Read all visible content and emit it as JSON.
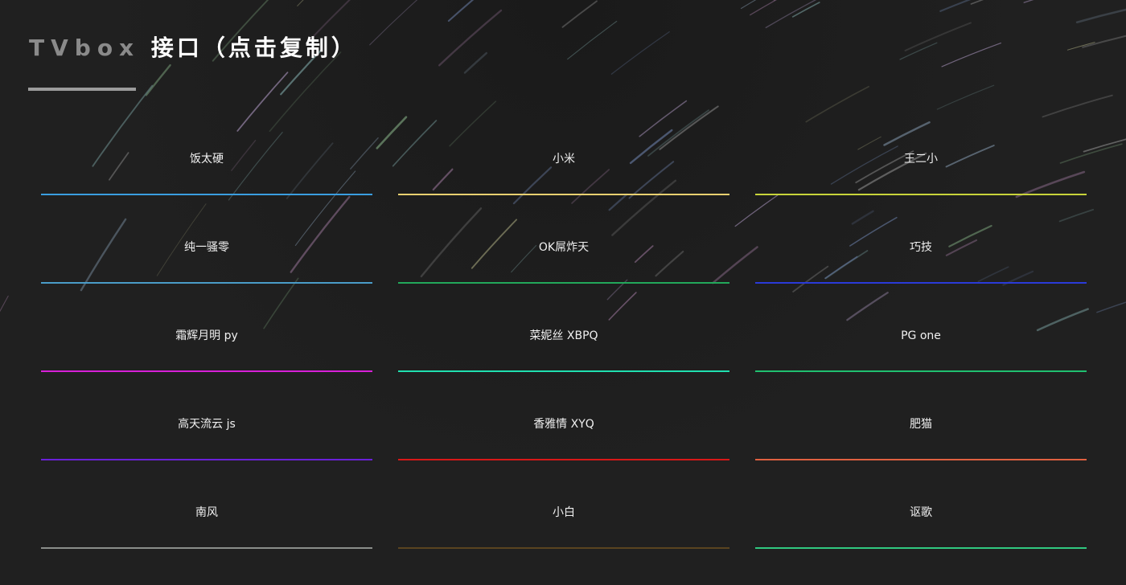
{
  "header": {
    "title_latin": "TVbox",
    "title_rest": " 接口（点击复制）"
  },
  "items": [
    {
      "label": "饭太硬",
      "color": "#3a9ee0"
    },
    {
      "label": "小米",
      "color": "#e8d070"
    },
    {
      "label": "王二小",
      "color": "#c8d43a"
    },
    {
      "label": "纯一骚零",
      "color": "#4a9cc8"
    },
    {
      "label": "OK屌炸天",
      "color": "#22a85a"
    },
    {
      "label": "巧技",
      "color": "#2a3ad8"
    },
    {
      "label": "霜辉月明 py",
      "color": "#d820d8"
    },
    {
      "label": "菜妮丝 XBPQ",
      "color": "#20e0b0"
    },
    {
      "label": "PG one",
      "color": "#20c070"
    },
    {
      "label": "高天流云 js",
      "color": "#6a20d8"
    },
    {
      "label": "香雅情 XYQ",
      "color": "#d81818"
    },
    {
      "label": "肥猫",
      "color": "#e06040"
    },
    {
      "label": "南风",
      "color": "#8a8e8a"
    },
    {
      "label": "小白",
      "color": "#5a4420"
    },
    {
      "label": "讴歌",
      "color": "#30c880"
    }
  ]
}
